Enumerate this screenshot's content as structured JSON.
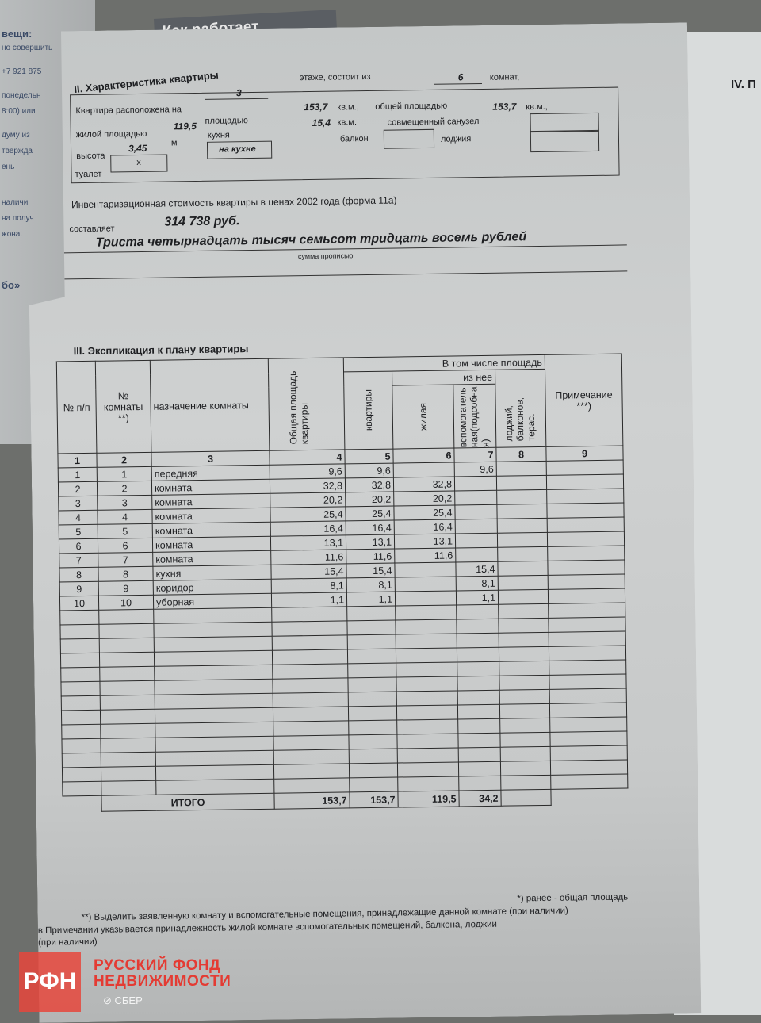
{
  "background": {
    "newspaper_headline": "Как работает",
    "newspaper_snippets": [
      "вещи:",
      "но совершить",
      "+7 921 875",
      "понедельн",
      "8:00) или",
      "думу из",
      "твержда",
      "ень",
      "наличи",
      "на получ",
      "жона.",
      "бо»"
    ],
    "right_page_heading": "IV. П"
  },
  "section2": {
    "title": "II. Характеристика квартиры",
    "floor_label": "Квартира расположена на",
    "floor": "3",
    "floor_suffix": "этаже, состоит из",
    "rooms": "6",
    "rooms_suffix": "комнат,",
    "area_label": "площадью",
    "area": "153,7",
    "unit": "кв.м.,",
    "total_area_label": "общей площадью",
    "total_area": "153,7",
    "unit2": "кв.м.,",
    "living_label": "жилой площадью",
    "living": "119,5",
    "kitchen_label": "кухня",
    "kitchen": "15,4",
    "unit3": "кв.м.",
    "combined_bath_label": "совмещенный санузел",
    "height_label": "высота",
    "height": "3,45",
    "height_unit": "м",
    "kitchen_box": "на кухне",
    "balcony_label": "балкон",
    "loggia_label": "лоджия",
    "toilet_label": "туалет",
    "toilet": "х"
  },
  "valuation": {
    "label": "Инвентаризационная стоимость квартиры  в ценах  2002 года (форма 11а)",
    "amount_label": "составляет",
    "amount": "314 738 руб.",
    "amount_words": "Триста четырнадцать тысяч семьсот тридцать восемь рублей",
    "words_caption": "сумма прописью"
  },
  "section3": {
    "title": "III. Экспликация к плану квартиры",
    "headers": {
      "np": "№ п/п",
      "room_no": "№ комнаты **)",
      "purpose": "назначение комнаты",
      "total": "Общая площадь квартиры",
      "including": "В том числе площадь",
      "apartment": "квартиры",
      "of_which": "из нее",
      "living": "жилая",
      "aux": "вспомогательная(подсобная)",
      "loggia": "лоджий, балконов, терас.",
      "note": "Примечание ***)"
    },
    "col_numbers": [
      "1",
      "2",
      "3",
      "4",
      "5",
      "6",
      "7",
      "8",
      "9"
    ],
    "rows": [
      [
        "1",
        "1",
        "передняя",
        "9,6",
        "9,6",
        "",
        "9,6"
      ],
      [
        "2",
        "2",
        "комната",
        "32,8",
        "32,8",
        "32,8",
        ""
      ],
      [
        "3",
        "3",
        "комната",
        "20,2",
        "20,2",
        "20,2",
        ""
      ],
      [
        "4",
        "4",
        "комната",
        "25,4",
        "25,4",
        "25,4",
        ""
      ],
      [
        "5",
        "5",
        "комната",
        "16,4",
        "16,4",
        "16,4",
        ""
      ],
      [
        "6",
        "6",
        "комната",
        "13,1",
        "13,1",
        "13,1",
        ""
      ],
      [
        "7",
        "7",
        "комната",
        "11,6",
        "11,6",
        "11,6",
        ""
      ],
      [
        "8",
        "8",
        "кухня",
        "15,4",
        "15,4",
        "",
        "15,4"
      ],
      [
        "9",
        "9",
        "коридор",
        "8,1",
        "8,1",
        "",
        "8,1"
      ],
      [
        "10",
        "10",
        "уборная",
        "1,1",
        "1,1",
        "",
        "1,1"
      ]
    ],
    "total": {
      "label": "ИТОГО",
      "total": "153,7",
      "apartment": "153,7",
      "living": "119,5",
      "aux": "34,2"
    }
  },
  "footnotes": {
    "f1": "*)   ранее - общая площадь",
    "f2": "**)  Выделить заявленную комнату и вспомогательные помещения, принадлежащие данной комнате (при наличии)",
    "f3": "в Примечании указывается принадлежность жилой комнате вспомогательных помещений, балкона, лоджии",
    "f4": "(при наличии)"
  },
  "watermark": {
    "logo": "РФН",
    "line1": "РУССКИЙ  ФОНД",
    "line2": "НЕДВИЖИМОСТИ",
    "sber": "⊘ СБЕР",
    "color": "#e43b33"
  }
}
